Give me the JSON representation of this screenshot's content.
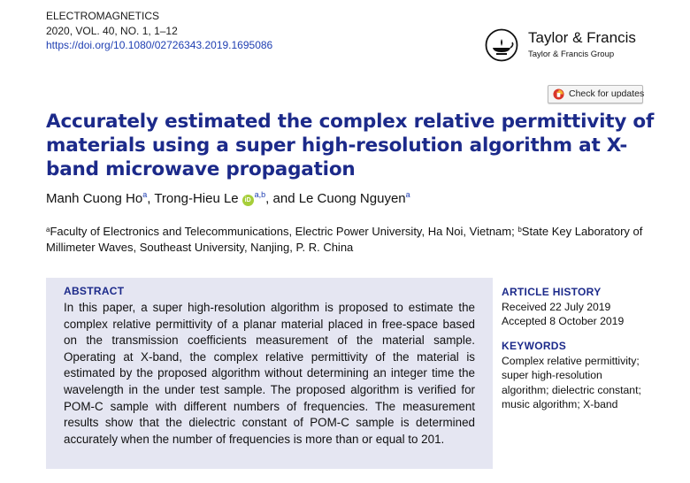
{
  "journal": {
    "name": "ELECTROMAGNETICS",
    "issue": "2020, VOL. 40, NO. 1, 1–12",
    "doi": "https://doi.org/10.1080/02726343.2019.1695086"
  },
  "publisher": {
    "name": "Taylor & Francis",
    "group": "Taylor & Francis Group",
    "icon": "taylor-francis-lamp-logo"
  },
  "check_updates": {
    "label": "Check for updates",
    "icon": "check-updates-icon"
  },
  "title": "Accurately estimated the complex relative permittivity of materials using a super high-resolution algorithm at X-band microwave propagation",
  "authors": [
    {
      "name": "Manh Cuong Ho",
      "sup": "a"
    },
    {
      "name": "Trong-Hieu Le",
      "sup": "a,b",
      "orcid": "iD"
    },
    {
      "name": "Le Cuong Nguyen",
      "sup": "a"
    }
  ],
  "author_separators": [
    ", ",
    ", and "
  ],
  "affiliations": [
    {
      "sup": "a",
      "text": "Faculty of Electronics and Telecommunications, Electric Power University, Ha Noi, Vietnam; "
    },
    {
      "sup": "b",
      "text": "State Key Laboratory of Millimeter Waves, Southeast University, Nanjing, P. R. China"
    }
  ],
  "abstract": {
    "heading": "ABSTRACT",
    "text": "In this paper, a super high-resolution algorithm is proposed to estimate the complex relative permittivity of a planar material placed in free-space based on the transmission coefficients measurement of the material sample. Operating at X-band, the complex relative permittivity of the material is estimated by the proposed algorithm without determining an integer time the wavelength in the under test sample. The proposed algorithm is verified for POM-C sample with different numbers of frequencies. The measurement results show that the dielectric constant of POM-C sample is determined accurately when the number of frequencies is more than or equal to 201."
  },
  "article_history": {
    "heading": "ARTICLE HISTORY",
    "received": "Received 22 July 2019",
    "accepted": "Accepted 8 October 2019"
  },
  "keywords": {
    "heading": "KEYWORDS",
    "items": [
      "Complex relative permittivity",
      "super high-resolution algorithm",
      "dielectric constant",
      "music algorithm",
      "X-band"
    ]
  },
  "colors": {
    "title": "#1c2a8a",
    "link": "#1f3fb2",
    "abstract_bg": "#e5e6f2",
    "orcid": "#a6ce39"
  }
}
